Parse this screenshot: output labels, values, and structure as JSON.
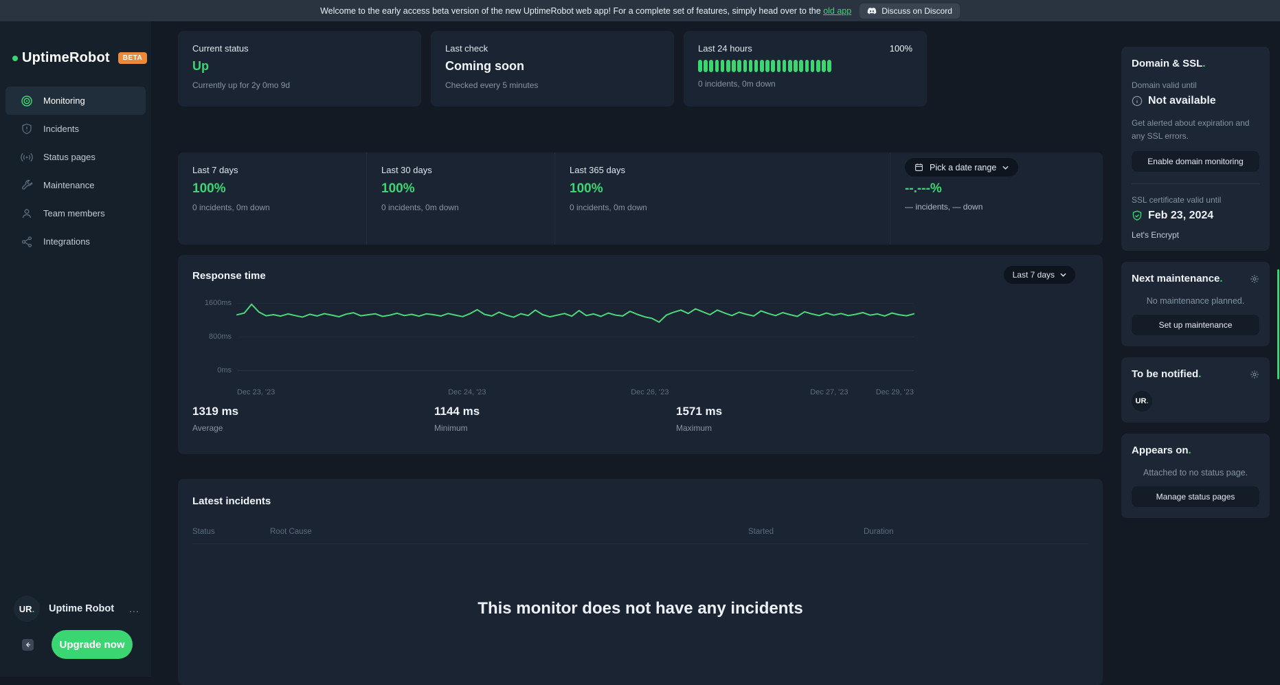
{
  "ui": {
    "dot": ".",
    "ellipsis": "..."
  },
  "colors": {
    "accent": "#3bd671",
    "badge": "#ec8a3a",
    "card_bg": "#1a2432",
    "page_bg": "#131a24"
  },
  "banner": {
    "text_before_link": "Welcome to the early access beta version of the new UptimeRobot web app! For a complete set of features, simply head over to the ",
    "link_text": "old app",
    "discord_label": "Discuss on Discord"
  },
  "sidebar": {
    "logo_text": "UptimeRobot",
    "beta_badge": "BETA",
    "items": [
      {
        "icon": "monitoring-icon",
        "label": "Monitoring",
        "active": true
      },
      {
        "icon": "incidents-icon",
        "label": "Incidents",
        "active": false
      },
      {
        "icon": "status-pages-icon",
        "label": "Status pages",
        "active": false
      },
      {
        "icon": "maintenance-icon",
        "label": "Maintenance",
        "active": false
      },
      {
        "icon": "team-members-icon",
        "label": "Team members",
        "active": false
      },
      {
        "icon": "integrations-icon",
        "label": "Integrations",
        "active": false
      }
    ],
    "account": {
      "avatar_initials": "UR",
      "name": "Uptime Robot"
    },
    "upgrade_label": "Upgrade now"
  },
  "cards": {
    "current_status": {
      "title": "Current status",
      "value": "Up",
      "subtitle": "Currently up for 2y 0mo 9d"
    },
    "last_check": {
      "title": "Last check",
      "value": "Coming soon",
      "subtitle": "Checked every 5 minutes"
    },
    "last24": {
      "title": "Last 24 hours",
      "percent": "100%",
      "subtitle": "0 incidents, 0m down",
      "bar_count": 24
    }
  },
  "uptime_band": {
    "columns": [
      {
        "label": "Last 7 days",
        "value": "100%",
        "subtitle": "0 incidents, 0m down"
      },
      {
        "label": "Last 30 days",
        "value": "100%",
        "subtitle": "0 incidents, 0m down"
      },
      {
        "label": "Last 365 days",
        "value": "100%",
        "subtitle": "0 incidents, 0m down"
      }
    ],
    "date_range": {
      "button_label": "Pick a date range",
      "value": "--.---%",
      "subtitle": "— incidents, — down"
    }
  },
  "response_time": {
    "title": "Response time",
    "range_label": "Last 7 days",
    "stats": [
      {
        "value": "1319 ms",
        "label": "Average"
      },
      {
        "value": "1144 ms",
        "label": "Minimum"
      },
      {
        "value": "1571 ms",
        "label": "Maximum"
      }
    ]
  },
  "chart_data": {
    "type": "line",
    "title": "Response time",
    "unit": "ms",
    "ylim": [
      0,
      1600
    ],
    "y_ticks": [
      "1600ms",
      "800ms",
      "0ms"
    ],
    "x_ticks": [
      "Dec 23, '23",
      "Dec 24, '23",
      "Dec 26, '23",
      "Dec 27, '23",
      "Dec 29, '23"
    ],
    "legend": [],
    "grid": true,
    "series": [
      {
        "name": "response_time_ms",
        "values": [
          1320,
          1362,
          1571,
          1385,
          1296,
          1322,
          1288,
          1341,
          1302,
          1266,
          1333,
          1291,
          1347,
          1312,
          1273,
          1336,
          1368,
          1297,
          1321,
          1343,
          1282,
          1311,
          1356,
          1302,
          1331,
          1287,
          1342,
          1322,
          1292,
          1351,
          1312,
          1276,
          1346,
          1442,
          1331,
          1292,
          1381,
          1311,
          1262,
          1346,
          1302,
          1432,
          1322,
          1272,
          1311,
          1351,
          1286,
          1421,
          1302,
          1341,
          1282,
          1361,
          1312,
          1292,
          1402,
          1331,
          1272,
          1236,
          1144,
          1312,
          1381,
          1432,
          1351,
          1462,
          1391,
          1322,
          1432,
          1361,
          1302,
          1381,
          1331,
          1292,
          1412,
          1351,
          1302,
          1371,
          1322,
          1282,
          1391,
          1341,
          1302,
          1361,
          1311,
          1351,
          1302,
          1331,
          1371,
          1311,
          1341,
          1291,
          1361,
          1321,
          1296,
          1342
        ]
      }
    ],
    "summary": {
      "average_ms": 1319,
      "minimum_ms": 1144,
      "maximum_ms": 1571
    }
  },
  "incidents": {
    "title": "Latest incidents",
    "columns": [
      "Status",
      "Root Cause",
      "Started",
      "Duration"
    ],
    "empty_message": "This monitor does not have any incidents"
  },
  "rail": {
    "domain_ssl": {
      "title": "Domain & SSL",
      "domain_label": "Domain valid until",
      "domain_value": "Not available",
      "help_text": "Get alerted about expiration and any SSL errors.",
      "button": "Enable domain monitoring",
      "ssl_label": "SSL certificate valid until",
      "ssl_value": "Feb 23, 2024",
      "issuer": "Let's Encrypt"
    },
    "maintenance": {
      "title": "Next maintenance",
      "empty": "No maintenance planned.",
      "button": "Set up maintenance"
    },
    "notified": {
      "title": "To be notified",
      "avatar_initials": "UR"
    },
    "appears": {
      "title": "Appears on",
      "empty": "Attached to no status page.",
      "button": "Manage status pages"
    }
  }
}
